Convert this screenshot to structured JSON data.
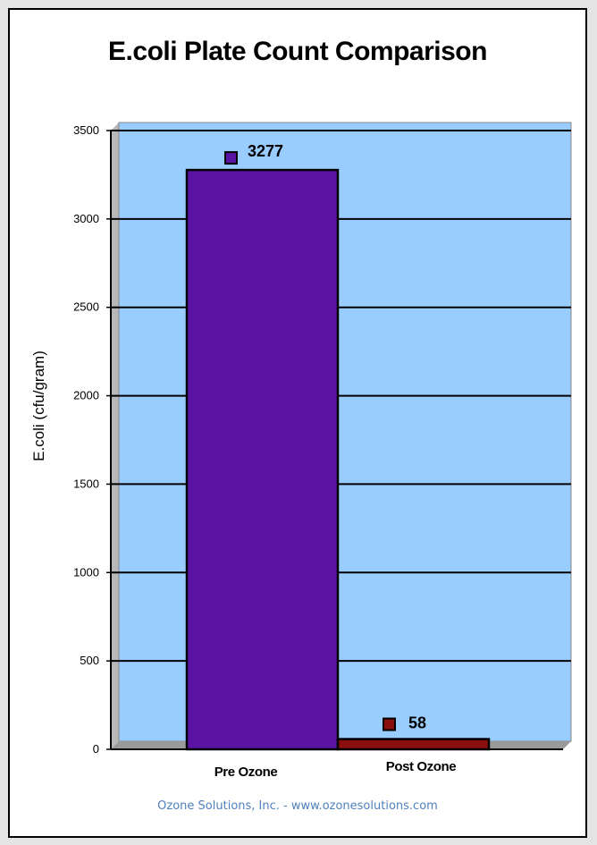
{
  "chart_data": {
    "type": "bar",
    "title": "E.coli Plate Count Comparison",
    "ylabel": "E.coli (cfu/gram)",
    "xlabel": "",
    "categories": [
      "Pre Ozone",
      "Post Ozone"
    ],
    "values": [
      3277,
      58
    ],
    "data_labels": [
      "3277",
      "58"
    ],
    "ylim": [
      0,
      3500
    ],
    "yticks": [
      0,
      500,
      1000,
      1500,
      2000,
      2500,
      3000,
      3500
    ],
    "grid": true,
    "legend": "none",
    "colors": {
      "plot_background": "#99ccff",
      "bars": [
        "#5b13a4",
        "#8b0e0e"
      ],
      "gridlines": "#000000"
    }
  },
  "footer": {
    "credit": "Ozone Solutions, Inc. - www.ozonesolutions.com"
  }
}
